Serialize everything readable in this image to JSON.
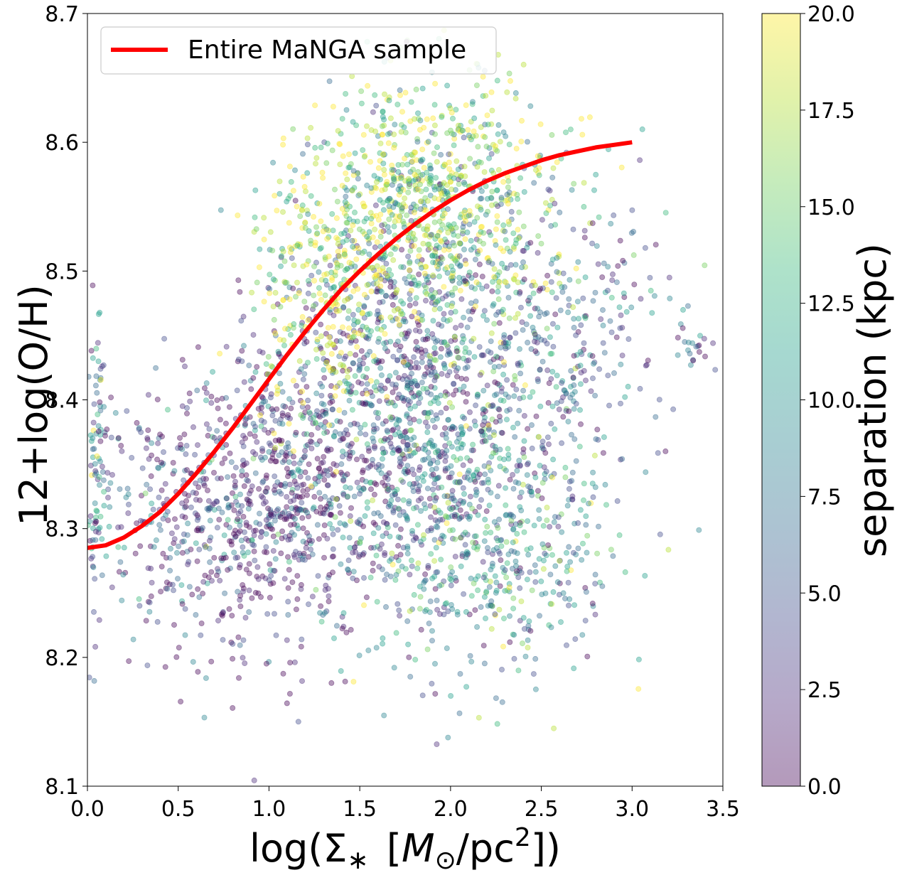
{
  "chart_data": {
    "type": "scatter",
    "xlabel_parts": {
      "prefix": "log(",
      "sigma": "Σ",
      "star": "∗",
      "mass": "M",
      "sun": "⊙",
      "unit": "/pc",
      "exp": "2",
      "suffix": "])"
    },
    "ylabel": "12+log(O/H)",
    "xlim": [
      0.0,
      3.5
    ],
    "ylim": [
      8.1,
      8.7
    ],
    "xticks": [
      "0.0",
      "0.5",
      "1.0",
      "1.5",
      "2.0",
      "2.5",
      "3.0",
      "3.5"
    ],
    "yticks": [
      "8.1",
      "8.2",
      "8.3",
      "8.4",
      "8.5",
      "8.6",
      "8.7"
    ],
    "grid": false,
    "legend": {
      "placement": "upper-left",
      "entries": [
        "Entire MaNGA sample"
      ]
    },
    "colorbar": {
      "label": "separation (kpc)",
      "range": [
        0.0,
        20.0
      ],
      "ticks": [
        "0.0",
        "2.5",
        "5.0",
        "7.5",
        "10.0",
        "12.5",
        "15.0",
        "17.5",
        "20.0"
      ],
      "colormap": "viridis",
      "colors": [
        "#440154",
        "#482878",
        "#3e4989",
        "#31688e",
        "#26828e",
        "#1f9e89",
        "#35b779",
        "#6ece58",
        "#b5de2b",
        "#fde725"
      ],
      "alpha": 0.4
    },
    "series": [
      {
        "name": "Entire MaNGA sample",
        "kind": "line",
        "color": "#ff0000",
        "x": [
          0.0,
          0.1,
          0.2,
          0.3,
          0.4,
          0.5,
          0.6,
          0.7,
          0.8,
          0.9,
          1.0,
          1.1,
          1.2,
          1.3,
          1.4,
          1.5,
          1.6,
          1.7,
          1.8,
          1.9,
          2.0,
          2.1,
          2.2,
          2.3,
          2.4,
          2.5,
          2.6,
          2.7,
          2.8,
          2.9,
          3.0
        ],
        "y": [
          8.285,
          8.287,
          8.293,
          8.302,
          8.313,
          8.327,
          8.343,
          8.36,
          8.378,
          8.397,
          8.416,
          8.435,
          8.453,
          8.47,
          8.486,
          8.5,
          8.513,
          8.525,
          8.536,
          8.546,
          8.555,
          8.563,
          8.57,
          8.576,
          8.581,
          8.586,
          8.59,
          8.593,
          8.596,
          8.598,
          8.6
        ]
      },
      {
        "name": "",
        "kind": "scatter",
        "note_clusters": [
          {
            "x": 0.6,
            "y": 8.31,
            "sx": 0.28,
            "sy": 0.055,
            "sep": 3.0
          },
          {
            "x": 1.1,
            "y": 8.33,
            "sx": 0.22,
            "sy": 0.06,
            "sep": 2.0
          },
          {
            "x": 1.75,
            "y": 8.4,
            "sx": 0.3,
            "sy": 0.07,
            "sep": 5.0
          },
          {
            "x": 1.9,
            "y": 8.55,
            "sx": 0.35,
            "sy": 0.05,
            "sep": 15.0
          },
          {
            "x": 2.2,
            "y": 8.3,
            "sx": 0.35,
            "sy": 0.06,
            "sep": 9.0
          },
          {
            "x": 1.3,
            "y": 8.48,
            "sx": 0.2,
            "sy": 0.05,
            "sep": 18.0
          },
          {
            "x": 2.6,
            "y": 8.45,
            "sx": 0.3,
            "sy": 0.05,
            "sep": 6.0
          },
          {
            "x": 0.05,
            "y": 8.35,
            "sx": 0.03,
            "sy": 0.06,
            "sep": 8.0
          },
          {
            "x": 3.35,
            "y": 8.44,
            "sx": 0.08,
            "sy": 0.01,
            "sep": 3.0
          }
        ]
      }
    ]
  }
}
